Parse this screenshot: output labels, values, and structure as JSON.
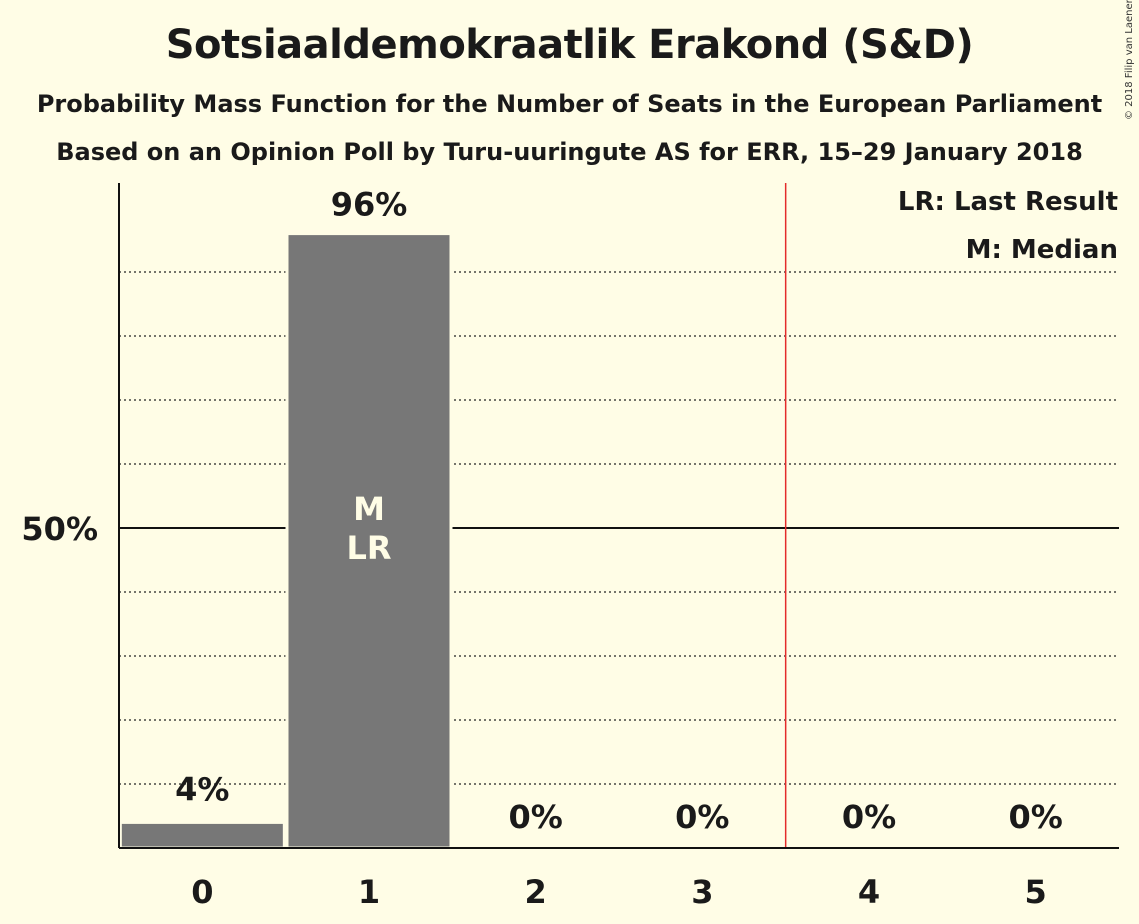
{
  "chart_data": {
    "type": "bar",
    "title": "Sotsiaaldemokraatlik Erakond (S&D)",
    "subtitle": "Probability Mass Function for the Number of Seats in the European Parliament",
    "subtitle2": "Based on an Opinion Poll by Turu-uuringute AS for ERR, 15–29 January 2018",
    "copyright": "© 2018 Filip van Laenen",
    "categories": [
      "0",
      "1",
      "2",
      "3",
      "4",
      "5"
    ],
    "values": [
      4,
      96,
      0,
      0,
      0,
      0
    ],
    "value_labels": [
      "4%",
      "96%",
      "0%",
      "0%",
      "0%",
      "0%"
    ],
    "ylim": [
      0,
      100
    ],
    "y_tick_label": "50%",
    "y_tick_value": 50,
    "gridlines": [
      10,
      20,
      30,
      40,
      60,
      70,
      80,
      90
    ],
    "majority_line_after_category": 3.5,
    "bar_color": "#777777",
    "majority_line_color": "#e32b2b",
    "bar_annotations": {
      "category": "1",
      "lines": [
        "M",
        "LR"
      ]
    },
    "legend": {
      "placement": "top-right",
      "items": [
        "LR: Last Result",
        "M: Median"
      ]
    }
  }
}
